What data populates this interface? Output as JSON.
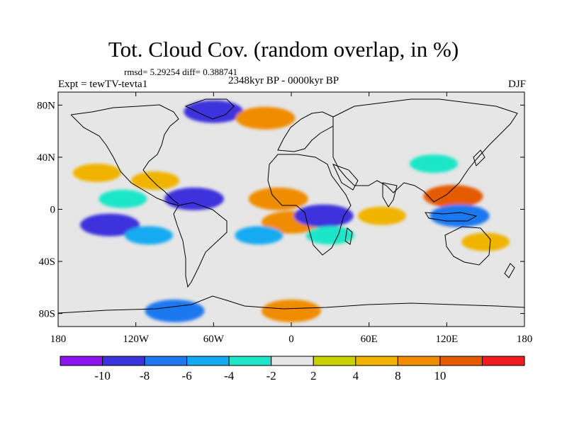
{
  "title": "Tot. Cloud Cov. (random overlap, in %)",
  "stats_line": "rmsd= 5.29254 diff= 0.388741",
  "experiment": "Expt = tewTV-tevta1",
  "period": "2348kyr BP - 0000kyr BP",
  "season": "DJF",
  "lat_ticks": [
    "80N",
    "40N",
    "0",
    "40S",
    "80S"
  ],
  "lat_values": [
    80,
    40,
    0,
    -40,
    -80
  ],
  "lon_ticks": [
    "180",
    "120W",
    "60W",
    "0",
    "60E",
    "120E",
    "180"
  ],
  "lon_values": [
    -180,
    -120,
    -60,
    0,
    60,
    120,
    180
  ],
  "colorbar": {
    "labels": [
      "-10",
      "-8",
      "-6",
      "-4",
      "-2",
      "2",
      "4",
      "8",
      "10"
    ],
    "colors": [
      "#8c14f0",
      "#3c32dc",
      "#1e78f0",
      "#14aaf0",
      "#1ee6c8",
      "#e6e6e6",
      "#c8d200",
      "#f0b400",
      "#f08c00",
      "#e65a00",
      "#f01e1e"
    ]
  },
  "chart_data": {
    "type": "heatmap",
    "title": "Tot. Cloud Cov. (random overlap, in %)",
    "xlim": [
      -180,
      180
    ],
    "ylim": [
      -90,
      90
    ],
    "levels": [
      -10,
      -8,
      -6,
      -4,
      -2,
      2,
      4,
      8,
      10
    ],
    "anomaly_patches": [
      {
        "lon": -150,
        "lat": 28,
        "value": 6
      },
      {
        "lon": -105,
        "lat": 22,
        "value": 6
      },
      {
        "lon": -75,
        "lat": 8,
        "value": -10
      },
      {
        "lon": -140,
        "lat": -12,
        "value": -10
      },
      {
        "lon": -110,
        "lat": -20,
        "value": -6
      },
      {
        "lon": -130,
        "lat": 8,
        "value": -4
      },
      {
        "lon": -10,
        "lat": 8,
        "value": 8
      },
      {
        "lon": 0,
        "lat": -10,
        "value": 8
      },
      {
        "lon": 25,
        "lat": -5,
        "value": -10
      },
      {
        "lon": 30,
        "lat": -20,
        "value": -4
      },
      {
        "lon": -25,
        "lat": -20,
        "value": -6
      },
      {
        "lon": 70,
        "lat": -5,
        "value": 6
      },
      {
        "lon": 125,
        "lat": 10,
        "value": 10
      },
      {
        "lon": 130,
        "lat": -5,
        "value": -8
      },
      {
        "lon": 150,
        "lat": -25,
        "value": 6
      },
      {
        "lon": 110,
        "lat": 35,
        "value": -4
      },
      {
        "lon": -60,
        "lat": 75,
        "value": -10
      },
      {
        "lon": -20,
        "lat": 70,
        "value": 8
      },
      {
        "lon": 0,
        "lat": -78,
        "value": 8
      },
      {
        "lon": -90,
        "lat": -78,
        "value": -8
      }
    ]
  }
}
